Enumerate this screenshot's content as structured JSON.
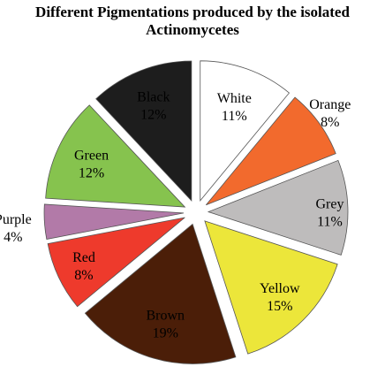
{
  "chart_data": {
    "type": "pie",
    "title_lines": [
      "Different Pigmentations produced by the isolated",
      "Actinomycetes"
    ],
    "exploded": true,
    "slices": [
      {
        "label": "White",
        "value": 11,
        "display": "11%",
        "color": "#ffffff"
      },
      {
        "label": "Orange",
        "value": 8,
        "display": "8%",
        "color": "#f26a2d"
      },
      {
        "label": "Grey",
        "value": 11,
        "display": "11%",
        "color": "#bebcbc"
      },
      {
        "label": "Yellow",
        "value": 15,
        "display": "15%",
        "color": "#ece63a"
      },
      {
        "label": "Brown",
        "value": 19,
        "display": "19%",
        "color": "#4b1e08"
      },
      {
        "label": "Red",
        "value": 8,
        "display": "8%",
        "color": "#ee3a2c"
      },
      {
        "label": "Purple",
        "value": 4,
        "display": "4%",
        "color": "#b27aa8"
      },
      {
        "label": "Green",
        "value": 12,
        "display": "12%",
        "color": "#86c34e"
      },
      {
        "label": "Black",
        "value": 12,
        "display": "12%",
        "color": "#1d1d1d"
      }
    ]
  }
}
